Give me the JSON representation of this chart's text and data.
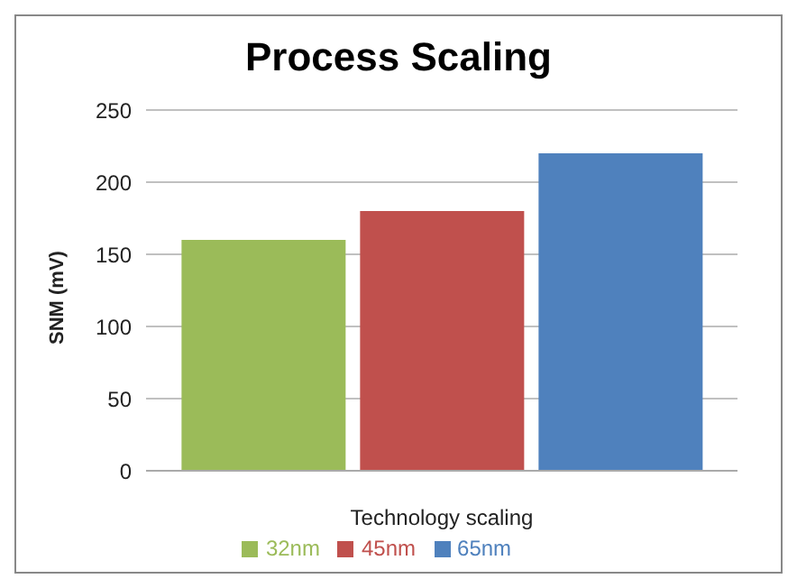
{
  "chart_data": {
    "type": "bar",
    "title": "Process Scaling",
    "xlabel": "Technology scaling",
    "ylabel": "SNM (mV)",
    "categories": [
      null
    ],
    "series": [
      {
        "name": "32nm",
        "color": "#9bbb59",
        "values": [
          160
        ]
      },
      {
        "name": "45nm",
        "color": "#c0504d",
        "values": [
          180
        ]
      },
      {
        "name": "65nm",
        "color": "#4f81bd",
        "values": [
          220
        ]
      }
    ],
    "ylim": [
      0,
      250
    ],
    "yticks": [
      0,
      50,
      100,
      150,
      200,
      250
    ],
    "grid": "y",
    "legend": "bottom"
  }
}
